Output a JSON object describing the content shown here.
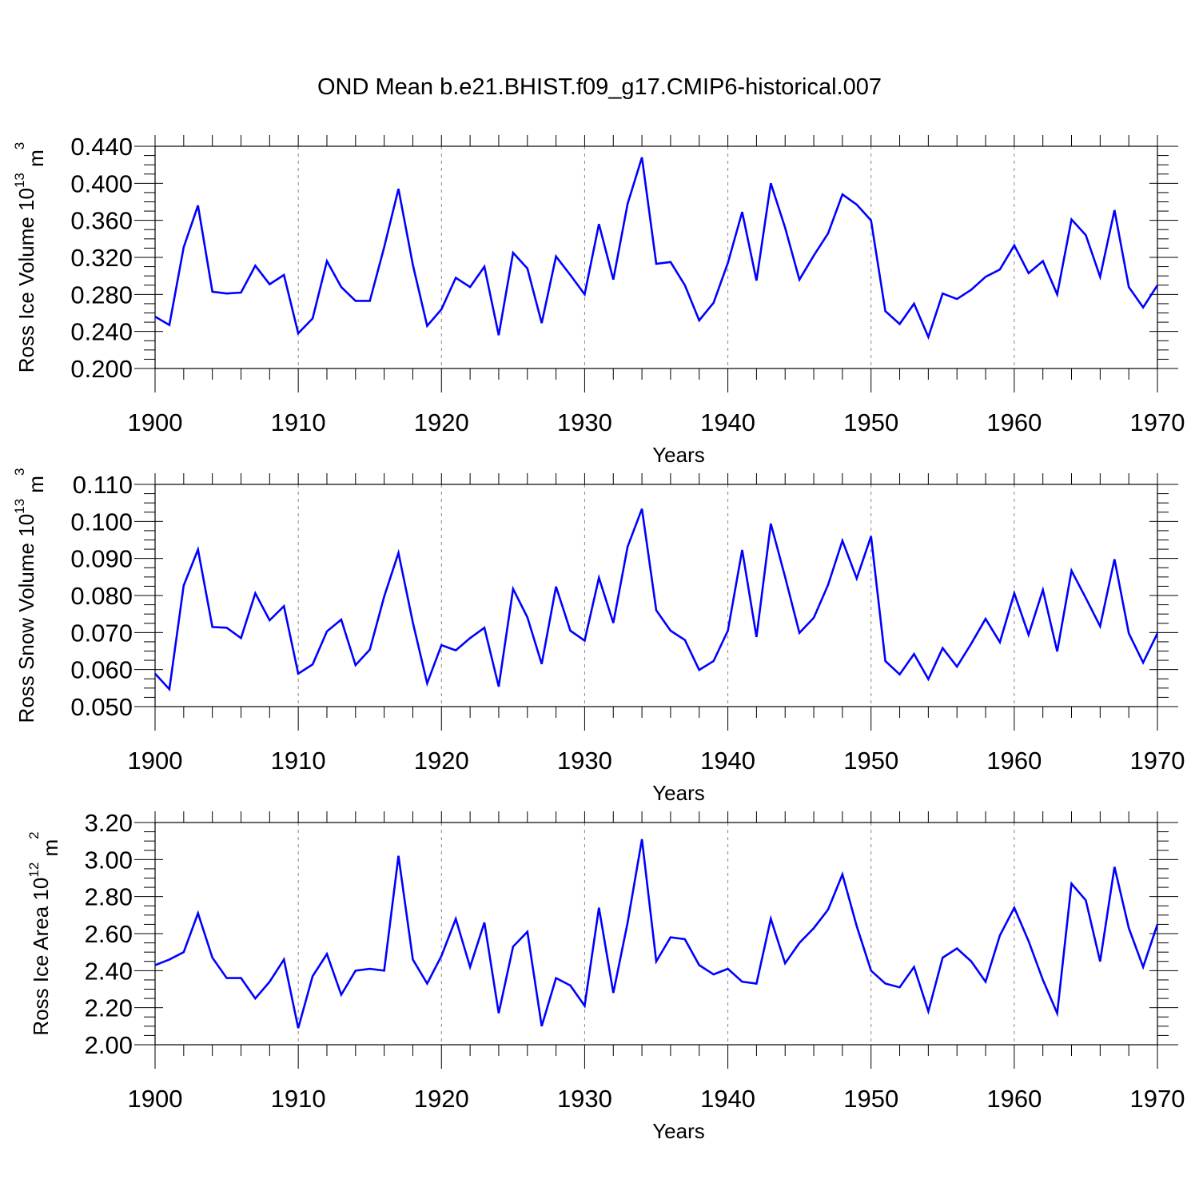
{
  "figure": {
    "title": "OND Mean b.e21.BHIST.f09_g17.CMIP6-historical.007",
    "line_color": "#0000ff",
    "grid_color": "#888888"
  },
  "chart_data": [
    {
      "type": "line",
      "title": "OND Mean b.e21.BHIST.f09_g17.CMIP6-historical.007",
      "xlabel": "Years",
      "ylabel_base": "Ross Ice Volume 10",
      "ylabel_exp": "13",
      "ylabel_unit": " m",
      "ylabel_unit_exp": "3",
      "xlim": [
        1900,
        1970
      ],
      "ylim": [
        0.2,
        0.44
      ],
      "xticks": [
        "1900",
        "1910",
        "1920",
        "1930",
        "1940",
        "1950",
        "1960",
        "1970"
      ],
      "yticks": [
        "0.200",
        "0.240",
        "0.280",
        "0.320",
        "0.360",
        "0.400",
        "0.440"
      ],
      "grid": "x-dashed",
      "x": [
        1900,
        1901,
        1902,
        1903,
        1904,
        1905,
        1906,
        1907,
        1908,
        1909,
        1910,
        1911,
        1912,
        1913,
        1914,
        1915,
        1916,
        1917,
        1918,
        1919,
        1920,
        1921,
        1922,
        1923,
        1924,
        1925,
        1926,
        1927,
        1928,
        1929,
        1930,
        1931,
        1932,
        1933,
        1934,
        1935,
        1936,
        1937,
        1938,
        1939,
        1940,
        1941,
        1942,
        1943,
        1944,
        1945,
        1946,
        1947,
        1948,
        1949,
        1950,
        1951,
        1952,
        1953,
        1954,
        1955,
        1956,
        1957,
        1958,
        1959,
        1960,
        1961,
        1962,
        1963,
        1964,
        1965,
        1966,
        1967,
        1968,
        1969,
        1970
      ],
      "y": [
        0.256,
        0.247,
        0.331,
        0.376,
        0.283,
        0.281,
        0.282,
        0.311,
        0.291,
        0.301,
        0.238,
        0.254,
        0.316,
        0.288,
        0.273,
        0.273,
        0.331,
        0.394,
        0.312,
        0.246,
        0.264,
        0.298,
        0.288,
        0.31,
        0.236,
        0.325,
        0.308,
        0.249,
        0.321,
        0.301,
        0.28,
        0.356,
        0.296,
        0.378,
        0.428,
        0.313,
        0.315,
        0.29,
        0.252,
        0.271,
        0.314,
        0.369,
        0.295,
        0.4,
        0.352,
        0.296,
        0.322,
        0.346,
        0.388,
        0.377,
        0.36,
        0.262,
        0.248,
        0.27,
        0.234,
        0.281,
        0.275,
        0.285,
        0.299,
        0.307,
        0.333,
        0.303,
        0.316,
        0.28,
        0.361,
        0.344,
        0.299,
        0.371,
        0.288,
        0.266,
        0.29
      ]
    },
    {
      "type": "line",
      "xlabel": "Years",
      "ylabel_base": "Ross Snow Volume 10",
      "ylabel_exp": "13",
      "ylabel_unit": " m",
      "ylabel_unit_exp": "3",
      "xlim": [
        1900,
        1970
      ],
      "ylim": [
        0.05,
        0.11
      ],
      "xticks": [
        "1900",
        "1910",
        "1920",
        "1930",
        "1940",
        "1950",
        "1960",
        "1970"
      ],
      "yticks": [
        "0.050",
        "0.060",
        "0.070",
        "0.080",
        "0.090",
        "0.100",
        "0.110"
      ],
      "grid": "x-dashed",
      "x": [
        1900,
        1901,
        1902,
        1903,
        1904,
        1905,
        1906,
        1907,
        1908,
        1909,
        1910,
        1911,
        1912,
        1913,
        1914,
        1915,
        1916,
        1917,
        1918,
        1919,
        1920,
        1921,
        1922,
        1923,
        1924,
        1925,
        1926,
        1927,
        1928,
        1929,
        1930,
        1931,
        1932,
        1933,
        1934,
        1935,
        1936,
        1937,
        1938,
        1939,
        1940,
        1941,
        1942,
        1943,
        1944,
        1945,
        1946,
        1947,
        1948,
        1949,
        1950,
        1951,
        1952,
        1953,
        1954,
        1955,
        1956,
        1957,
        1958,
        1959,
        1960,
        1961,
        1962,
        1963,
        1964,
        1965,
        1966,
        1967,
        1968,
        1969,
        1970
      ],
      "y": [
        0.0589,
        0.0547,
        0.0827,
        0.0924,
        0.0715,
        0.0713,
        0.0685,
        0.0806,
        0.0733,
        0.0771,
        0.0589,
        0.0614,
        0.0703,
        0.0735,
        0.0612,
        0.0654,
        0.0797,
        0.0915,
        0.0727,
        0.0563,
        0.0666,
        0.0652,
        0.0685,
        0.0713,
        0.0554,
        0.0818,
        0.0741,
        0.0615,
        0.0824,
        0.0705,
        0.0678,
        0.0848,
        0.0726,
        0.0932,
        0.1034,
        0.076,
        0.0705,
        0.068,
        0.0599,
        0.0623,
        0.0705,
        0.0923,
        0.0688,
        0.0994,
        0.085,
        0.0699,
        0.074,
        0.0829,
        0.0948,
        0.0846,
        0.096,
        0.0623,
        0.0587,
        0.0642,
        0.0574,
        0.0658,
        0.0608,
        0.067,
        0.0737,
        0.0674,
        0.0806,
        0.0694,
        0.0815,
        0.0649,
        0.0867,
        0.0793,
        0.0717,
        0.0898,
        0.0698,
        0.0619,
        0.0698
      ]
    },
    {
      "type": "line",
      "xlabel": "Years",
      "ylabel_base": "Ross Ice Area 10",
      "ylabel_exp": "12",
      "ylabel_unit": " m",
      "ylabel_unit_exp": "2",
      "xlim": [
        1900,
        1970
      ],
      "ylim": [
        2.0,
        3.2
      ],
      "xticks": [
        "1900",
        "1910",
        "1920",
        "1930",
        "1940",
        "1950",
        "1960",
        "1970"
      ],
      "yticks": [
        "2.00",
        "2.20",
        "2.40",
        "2.60",
        "2.80",
        "3.00",
        "3.20"
      ],
      "grid": "x-dashed",
      "x": [
        1900,
        1901,
        1902,
        1903,
        1904,
        1905,
        1906,
        1907,
        1908,
        1909,
        1910,
        1911,
        1912,
        1913,
        1914,
        1915,
        1916,
        1917,
        1918,
        1919,
        1920,
        1921,
        1922,
        1923,
        1924,
        1925,
        1926,
        1927,
        1928,
        1929,
        1930,
        1931,
        1932,
        1933,
        1934,
        1935,
        1936,
        1937,
        1938,
        1939,
        1940,
        1941,
        1942,
        1943,
        1944,
        1945,
        1946,
        1947,
        1948,
        1949,
        1950,
        1951,
        1952,
        1953,
        1954,
        1955,
        1956,
        1957,
        1958,
        1959,
        1960,
        1961,
        1962,
        1963,
        1964,
        1965,
        1966,
        1967,
        1968,
        1969,
        1970
      ],
      "y": [
        2.43,
        2.46,
        2.5,
        2.71,
        2.47,
        2.36,
        2.36,
        2.25,
        2.34,
        2.46,
        2.09,
        2.37,
        2.49,
        2.27,
        2.4,
        2.41,
        2.4,
        3.02,
        2.46,
        2.33,
        2.48,
        2.68,
        2.42,
        2.66,
        2.17,
        2.53,
        2.61,
        2.1,
        2.36,
        2.32,
        2.21,
        2.74,
        2.28,
        2.66,
        3.11,
        2.45,
        2.58,
        2.57,
        2.43,
        2.38,
        2.41,
        2.34,
        2.33,
        2.68,
        2.44,
        2.55,
        2.63,
        2.73,
        2.92,
        2.64,
        2.4,
        2.33,
        2.31,
        2.42,
        2.18,
        2.47,
        2.52,
        2.45,
        2.34,
        2.59,
        2.74,
        2.56,
        2.35,
        2.17,
        2.87,
        2.78,
        2.45,
        2.96,
        2.63,
        2.42,
        2.65
      ]
    }
  ]
}
